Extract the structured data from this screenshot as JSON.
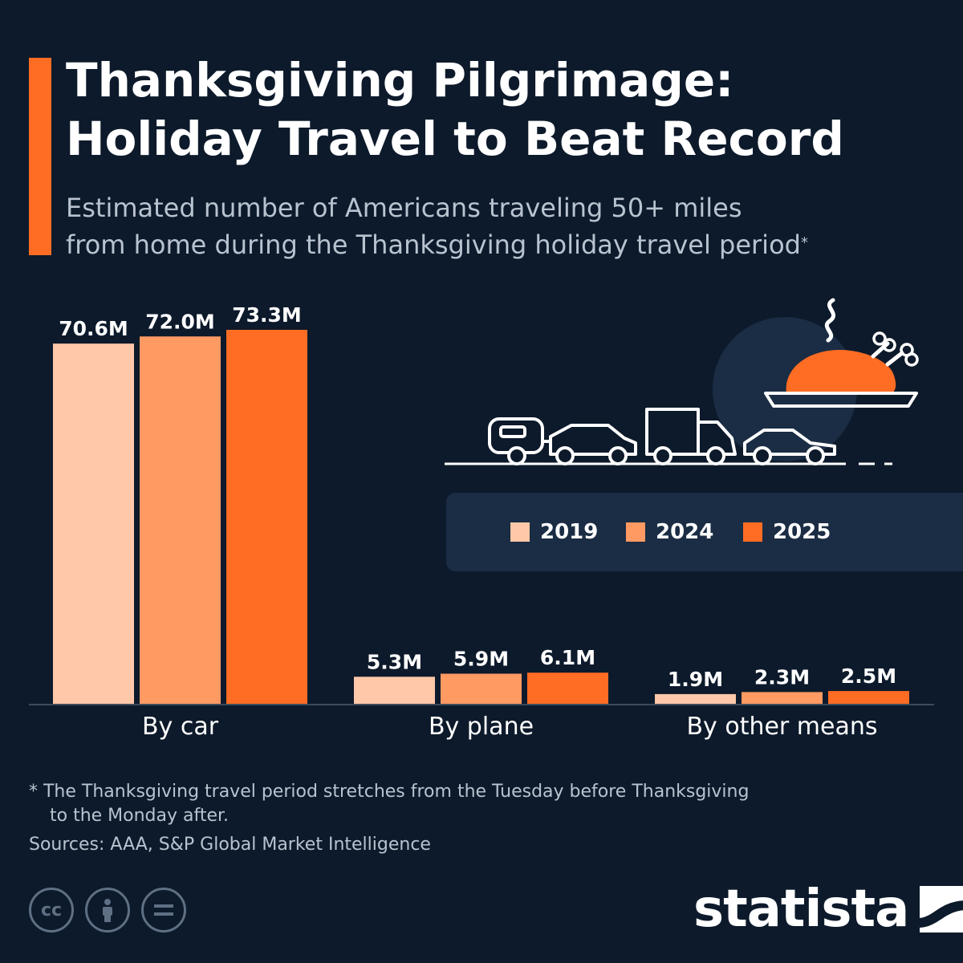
{
  "header": {
    "title_line1": "Thanksgiving Pilgrimage:",
    "title_line2": "Holiday Travel to Beat Record",
    "subtitle_line1": "Estimated number of Americans traveling 50+ miles",
    "subtitle_line2": "from home during the Thanksgiving holiday travel period",
    "subtitle_marker": "*"
  },
  "chart_data": {
    "type": "bar",
    "title": "Thanksgiving Pilgrimage: Holiday Travel to Beat Record",
    "subtitle": "Estimated number of Americans traveling 50+ miles from home during the Thanksgiving holiday travel period*",
    "categories": [
      "By car",
      "By plane",
      "By other means"
    ],
    "series": [
      {
        "name": "2019",
        "color": "#ffc8a8",
        "values": [
          70.6,
          5.3,
          1.9
        ],
        "labels": [
          "70.6M",
          "5.3M",
          "1.9M"
        ]
      },
      {
        "name": "2024",
        "color": "#ff9a63",
        "values": [
          72.0,
          5.9,
          2.3
        ],
        "labels": [
          "72.0M",
          "5.9M",
          "2.3M"
        ]
      },
      {
        "name": "2025",
        "color": "#ff6c23",
        "values": [
          73.3,
          6.1,
          2.5
        ],
        "labels": [
          "73.3M",
          "6.1M",
          "2.5M"
        ]
      }
    ],
    "ylim": [
      0,
      73.3
    ],
    "grid": false,
    "legend_position": "right",
    "xlabel": "",
    "ylabel": ""
  },
  "legend": {
    "items": [
      {
        "label": "2019",
        "color": "#ffc8a8"
      },
      {
        "label": "2024",
        "color": "#ff9a63"
      },
      {
        "label": "2025",
        "color": "#ff6c23"
      }
    ]
  },
  "footer": {
    "footnote_line1": "* The Thanksgiving travel period stretches from the Tuesday before Thanksgiving",
    "footnote_line2": "to the Monday after.",
    "sources": "Sources: AAA, S&P Global Market Intelligence",
    "brand": "statista",
    "license_icons": [
      "cc-icon",
      "attribution-icon",
      "no-derivatives-icon"
    ]
  },
  "colors": {
    "background": "#0d1a2b",
    "accent": "#ff6c23",
    "panel": "#1b2d44",
    "muted_text": "#b9c3d0"
  }
}
